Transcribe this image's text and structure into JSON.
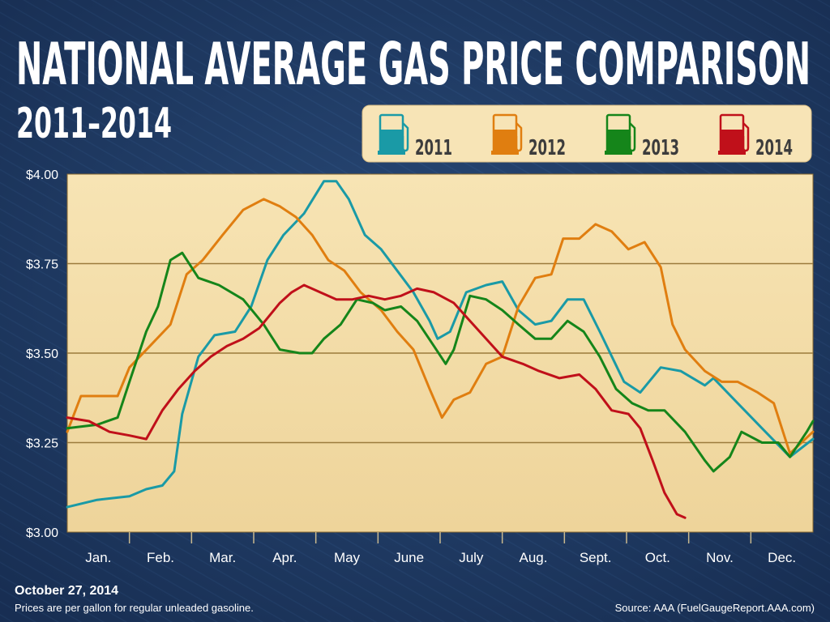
{
  "chart_data": {
    "type": "line",
    "title": "NATIONAL AVERAGE GAS PRICE COMPARISON",
    "subtitle": "2011–2014",
    "xlabel": "",
    "ylabel": "",
    "x_unit": "month of year (0 = start of Jan)",
    "xlim": [
      0,
      12
    ],
    "ylim": [
      3.0,
      4.0
    ],
    "grid": true,
    "legend_position": "top-right",
    "y_ticks": [
      "$3.00",
      "$3.25",
      "$3.50",
      "$3.75",
      "$4.00"
    ],
    "y_tick_values": [
      3.0,
      3.25,
      3.5,
      3.75,
      4.0
    ],
    "x_ticks": [
      "Jan.",
      "Feb.",
      "Mar.",
      "Apr.",
      "May",
      "June",
      "July",
      "Aug.",
      "Sept.",
      "Oct.",
      "Nov.",
      "Dec."
    ],
    "series": [
      {
        "name": "2011",
        "color": "#1a9aa6",
        "points": [
          [
            0,
            3.07
          ],
          [
            0.48,
            3.09
          ],
          [
            1.0,
            3.1
          ],
          [
            1.27,
            3.12
          ],
          [
            1.53,
            3.13
          ],
          [
            1.72,
            3.17
          ],
          [
            1.85,
            3.33
          ],
          [
            2.11,
            3.49
          ],
          [
            2.37,
            3.55
          ],
          [
            2.7,
            3.56
          ],
          [
            2.96,
            3.63
          ],
          [
            3.22,
            3.76
          ],
          [
            3.48,
            3.83
          ],
          [
            3.81,
            3.89
          ],
          [
            4.13,
            3.98
          ],
          [
            4.33,
            3.98
          ],
          [
            4.53,
            3.93
          ],
          [
            4.79,
            3.83
          ],
          [
            5.05,
            3.79
          ],
          [
            5.31,
            3.73
          ],
          [
            5.57,
            3.67
          ],
          [
            5.83,
            3.59
          ],
          [
            5.96,
            3.54
          ],
          [
            6.16,
            3.56
          ],
          [
            6.42,
            3.67
          ],
          [
            6.74,
            3.69
          ],
          [
            7.0,
            3.7
          ],
          [
            7.26,
            3.62
          ],
          [
            7.53,
            3.58
          ],
          [
            7.79,
            3.59
          ],
          [
            8.05,
            3.65
          ],
          [
            8.31,
            3.65
          ],
          [
            8.57,
            3.56
          ],
          [
            8.96,
            3.42
          ],
          [
            9.22,
            3.39
          ],
          [
            9.55,
            3.46
          ],
          [
            9.87,
            3.45
          ],
          [
            10.26,
            3.41
          ],
          [
            10.4,
            3.43
          ],
          [
            10.79,
            3.36
          ],
          [
            11.18,
            3.29
          ],
          [
            11.63,
            3.21
          ],
          [
            12.0,
            3.26
          ]
        ]
      },
      {
        "name": "2012",
        "color": "#e07e10",
        "points": [
          [
            0,
            3.28
          ],
          [
            0.22,
            3.38
          ],
          [
            0.48,
            3.38
          ],
          [
            0.81,
            3.38
          ],
          [
            1.0,
            3.46
          ],
          [
            1.33,
            3.52
          ],
          [
            1.66,
            3.58
          ],
          [
            1.92,
            3.72
          ],
          [
            2.18,
            3.76
          ],
          [
            2.5,
            3.83
          ],
          [
            2.83,
            3.9
          ],
          [
            3.16,
            3.93
          ],
          [
            3.42,
            3.91
          ],
          [
            3.68,
            3.88
          ],
          [
            3.94,
            3.83
          ],
          [
            4.2,
            3.76
          ],
          [
            4.46,
            3.73
          ],
          [
            4.72,
            3.67
          ],
          [
            5.05,
            3.62
          ],
          [
            5.31,
            3.56
          ],
          [
            5.57,
            3.51
          ],
          [
            5.83,
            3.4
          ],
          [
            6.03,
            3.32
          ],
          [
            6.22,
            3.37
          ],
          [
            6.48,
            3.39
          ],
          [
            6.74,
            3.47
          ],
          [
            7.0,
            3.49
          ],
          [
            7.26,
            3.63
          ],
          [
            7.53,
            3.71
          ],
          [
            7.79,
            3.72
          ],
          [
            7.98,
            3.82
          ],
          [
            8.24,
            3.82
          ],
          [
            8.5,
            3.86
          ],
          [
            8.76,
            3.84
          ],
          [
            9.03,
            3.79
          ],
          [
            9.29,
            3.81
          ],
          [
            9.55,
            3.74
          ],
          [
            9.74,
            3.58
          ],
          [
            9.94,
            3.51
          ],
          [
            10.26,
            3.45
          ],
          [
            10.53,
            3.42
          ],
          [
            10.79,
            3.42
          ],
          [
            11.11,
            3.39
          ],
          [
            11.37,
            3.36
          ],
          [
            11.63,
            3.22
          ],
          [
            12.0,
            3.28
          ]
        ]
      },
      {
        "name": "2013",
        "color": "#15851a",
        "points": [
          [
            0,
            3.29
          ],
          [
            0.48,
            3.3
          ],
          [
            0.81,
            3.32
          ],
          [
            1.0,
            3.42
          ],
          [
            1.27,
            3.56
          ],
          [
            1.46,
            3.63
          ],
          [
            1.66,
            3.76
          ],
          [
            1.85,
            3.78
          ],
          [
            2.11,
            3.71
          ],
          [
            2.44,
            3.69
          ],
          [
            2.83,
            3.65
          ],
          [
            3.16,
            3.58
          ],
          [
            3.42,
            3.51
          ],
          [
            3.74,
            3.5
          ],
          [
            3.94,
            3.5
          ],
          [
            4.13,
            3.54
          ],
          [
            4.4,
            3.58
          ],
          [
            4.66,
            3.65
          ],
          [
            4.92,
            3.64
          ],
          [
            5.11,
            3.62
          ],
          [
            5.37,
            3.63
          ],
          [
            5.63,
            3.59
          ],
          [
            5.9,
            3.52
          ],
          [
            6.09,
            3.47
          ],
          [
            6.22,
            3.51
          ],
          [
            6.48,
            3.66
          ],
          [
            6.74,
            3.65
          ],
          [
            7.0,
            3.62
          ],
          [
            7.26,
            3.58
          ],
          [
            7.53,
            3.54
          ],
          [
            7.79,
            3.54
          ],
          [
            8.05,
            3.59
          ],
          [
            8.31,
            3.56
          ],
          [
            8.57,
            3.49
          ],
          [
            8.83,
            3.4
          ],
          [
            9.09,
            3.36
          ],
          [
            9.35,
            3.34
          ],
          [
            9.61,
            3.34
          ],
          [
            9.94,
            3.28
          ],
          [
            10.26,
            3.2
          ],
          [
            10.4,
            3.17
          ],
          [
            10.66,
            3.21
          ],
          [
            10.85,
            3.28
          ],
          [
            11.18,
            3.25
          ],
          [
            11.44,
            3.25
          ],
          [
            11.63,
            3.21
          ],
          [
            11.9,
            3.28
          ],
          [
            12.0,
            3.31
          ]
        ]
      },
      {
        "name": "2014",
        "color": "#c0101a",
        "points": [
          [
            0,
            3.32
          ],
          [
            0.35,
            3.31
          ],
          [
            0.68,
            3.28
          ],
          [
            1.0,
            3.27
          ],
          [
            1.27,
            3.26
          ],
          [
            1.53,
            3.34
          ],
          [
            1.79,
            3.4
          ],
          [
            2.05,
            3.45
          ],
          [
            2.31,
            3.49
          ],
          [
            2.57,
            3.52
          ],
          [
            2.83,
            3.54
          ],
          [
            3.09,
            3.57
          ],
          [
            3.42,
            3.64
          ],
          [
            3.61,
            3.67
          ],
          [
            3.81,
            3.69
          ],
          [
            4.07,
            3.67
          ],
          [
            4.33,
            3.65
          ],
          [
            4.59,
            3.65
          ],
          [
            4.85,
            3.66
          ],
          [
            5.11,
            3.65
          ],
          [
            5.37,
            3.66
          ],
          [
            5.63,
            3.68
          ],
          [
            5.9,
            3.67
          ],
          [
            6.22,
            3.64
          ],
          [
            6.48,
            3.59
          ],
          [
            6.74,
            3.54
          ],
          [
            7.0,
            3.49
          ],
          [
            7.33,
            3.47
          ],
          [
            7.59,
            3.45
          ],
          [
            7.92,
            3.43
          ],
          [
            8.24,
            3.44
          ],
          [
            8.5,
            3.4
          ],
          [
            8.76,
            3.34
          ],
          [
            9.03,
            3.33
          ],
          [
            9.22,
            3.29
          ],
          [
            9.42,
            3.2
          ],
          [
            9.61,
            3.11
          ],
          [
            9.81,
            3.05
          ],
          [
            9.94,
            3.04
          ]
        ]
      }
    ]
  },
  "footer": {
    "date": "October 27, 2014",
    "note": "Prices are per gallon for regular unleaded gasoline.",
    "source": "Source: AAA (FuelGaugeReport.AAA.com)"
  },
  "colors": {
    "background": "#203a63",
    "plot_background": "#f3dca6",
    "legend_background": "#f7e4b6",
    "grid": "#9b7b3c"
  }
}
